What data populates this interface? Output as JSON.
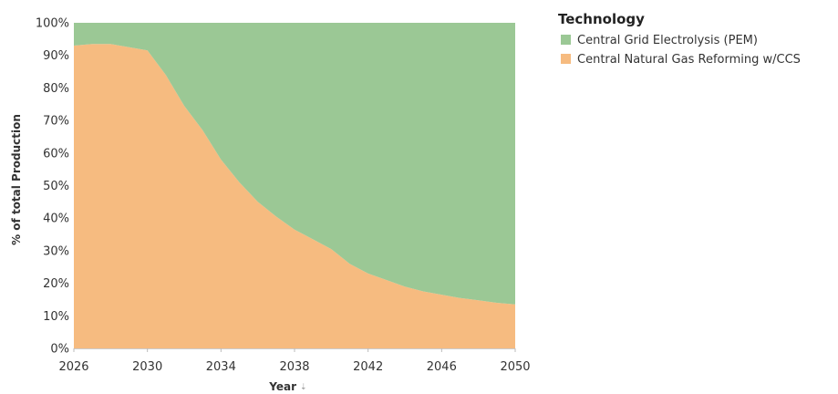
{
  "chart_data": {
    "type": "area",
    "stacked": "percent",
    "x": [
      2026,
      2027,
      2028,
      2029,
      2030,
      2031,
      2032,
      2033,
      2034,
      2035,
      2036,
      2037,
      2038,
      2039,
      2040,
      2041,
      2042,
      2043,
      2044,
      2045,
      2046,
      2047,
      2048,
      2049,
      2050
    ],
    "series": [
      {
        "name": "Central Natural Gas Reforming w/CCS",
        "color": "#f6bb80",
        "values": [
          93,
          93.5,
          93.5,
          92.5,
          91.5,
          84,
          74.5,
          67,
          58,
          51,
          45,
          40.5,
          36.5,
          33.5,
          30.5,
          26,
          23,
          21,
          19,
          17.5,
          16.5,
          15.5,
          14.8,
          14,
          13.5
        ]
      },
      {
        "name": "Central Grid Electrolysis (PEM)",
        "color": "#9bc895",
        "values": [
          7,
          6.5,
          6.5,
          7.5,
          8.5,
          16,
          25.5,
          33,
          42,
          49,
          55,
          59.5,
          63.5,
          66.5,
          69.5,
          74,
          77,
          79,
          81,
          82.5,
          83.5,
          84.5,
          85.2,
          86,
          86.5
        ]
      }
    ],
    "xlabel": "Year",
    "ylabel": "% of total Production",
    "xticks": [
      "2026",
      "2030",
      "2034",
      "2038",
      "2042",
      "2046",
      "2050"
    ],
    "yticks": [
      "0%",
      "10%",
      "20%",
      "30%",
      "40%",
      "50%",
      "60%",
      "70%",
      "80%",
      "90%",
      "100%"
    ],
    "xlim": [
      2026,
      2050
    ],
    "ylim": [
      0,
      100
    ],
    "grid": false,
    "legend": {
      "title": "Technology",
      "position": "top-right",
      "entries": [
        "Central Grid Electrolysis (PEM)",
        "Central Natural Gas Reforming w/CCS"
      ]
    }
  }
}
